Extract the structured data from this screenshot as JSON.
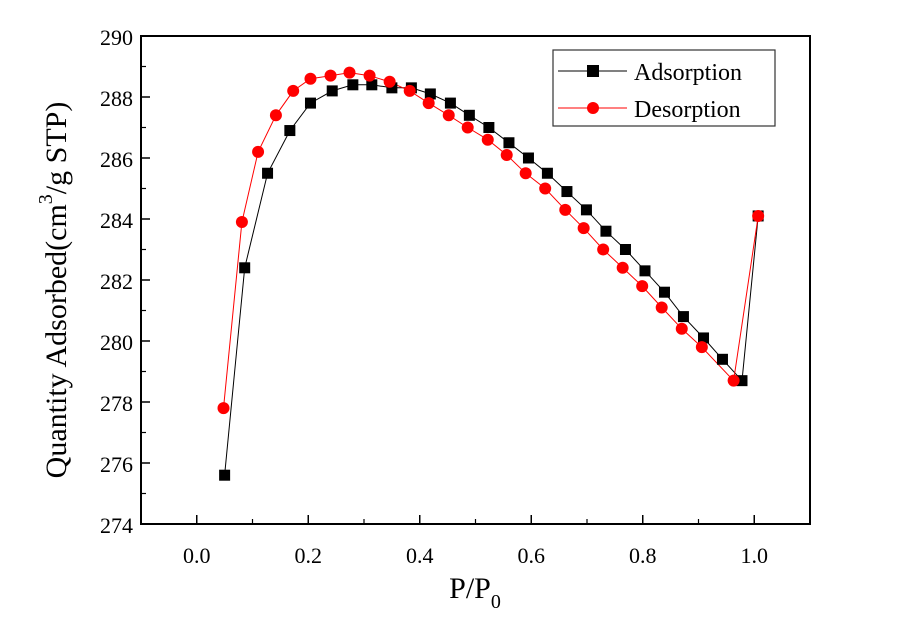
{
  "chart_data": {
    "type": "line",
    "title": "",
    "xlabel": "P/P",
    "xlabel_subscript": "0",
    "ylabel": "Quantity Adsorbed(cm",
    "ylabel_superscript": "3",
    "ylabel_suffix": "/g STP)",
    "xlim": [
      -0.1,
      1.1
    ],
    "ylim": [
      274,
      290
    ],
    "xticks": [
      0.0,
      0.2,
      0.4,
      0.6,
      0.8,
      1.0
    ],
    "xtick_labels": [
      "0.0",
      "0.2",
      "0.4",
      "0.6",
      "0.8",
      "1.0"
    ],
    "yticks": [
      274,
      276,
      278,
      280,
      282,
      284,
      286,
      288,
      290
    ],
    "ytick_labels": [
      "274",
      "276",
      "278",
      "280",
      "282",
      "284",
      "286",
      "288",
      "290"
    ],
    "grid": false,
    "legend_position": "top-right",
    "series": [
      {
        "name": "Adsorption",
        "color": "#000000",
        "marker": "square",
        "x": [
          0.05,
          0.086,
          0.127,
          0.167,
          0.204,
          0.243,
          0.28,
          0.314,
          0.35,
          0.385,
          0.419,
          0.455,
          0.489,
          0.524,
          0.56,
          0.595,
          0.629,
          0.664,
          0.699,
          0.734,
          0.769,
          0.804,
          0.839,
          0.873,
          0.909,
          0.943,
          0.978,
          1.007
        ],
        "y": [
          275.6,
          282.4,
          285.5,
          286.9,
          287.8,
          288.2,
          288.4,
          288.4,
          288.3,
          288.3,
          288.1,
          287.8,
          287.4,
          287.0,
          286.5,
          286.0,
          285.5,
          284.9,
          284.3,
          283.6,
          283.0,
          282.3,
          281.6,
          280.8,
          280.1,
          279.4,
          278.7,
          284.1
        ]
      },
      {
        "name": "Desorption",
        "color": "#ff0000",
        "marker": "circle",
        "x": [
          0.048,
          0.081,
          0.11,
          0.142,
          0.173,
          0.204,
          0.24,
          0.274,
          0.31,
          0.346,
          0.382,
          0.416,
          0.452,
          0.486,
          0.522,
          0.556,
          0.59,
          0.625,
          0.661,
          0.694,
          0.729,
          0.764,
          0.799,
          0.834,
          0.87,
          0.906,
          0.963,
          1.007
        ],
        "y": [
          277.8,
          283.9,
          286.2,
          287.4,
          288.2,
          288.6,
          288.7,
          288.8,
          288.7,
          288.5,
          288.2,
          287.8,
          287.4,
          287.0,
          286.6,
          286.1,
          285.5,
          285.0,
          284.3,
          283.7,
          283.0,
          282.4,
          281.8,
          281.1,
          280.4,
          279.8,
          278.7,
          284.1
        ]
      }
    ]
  }
}
